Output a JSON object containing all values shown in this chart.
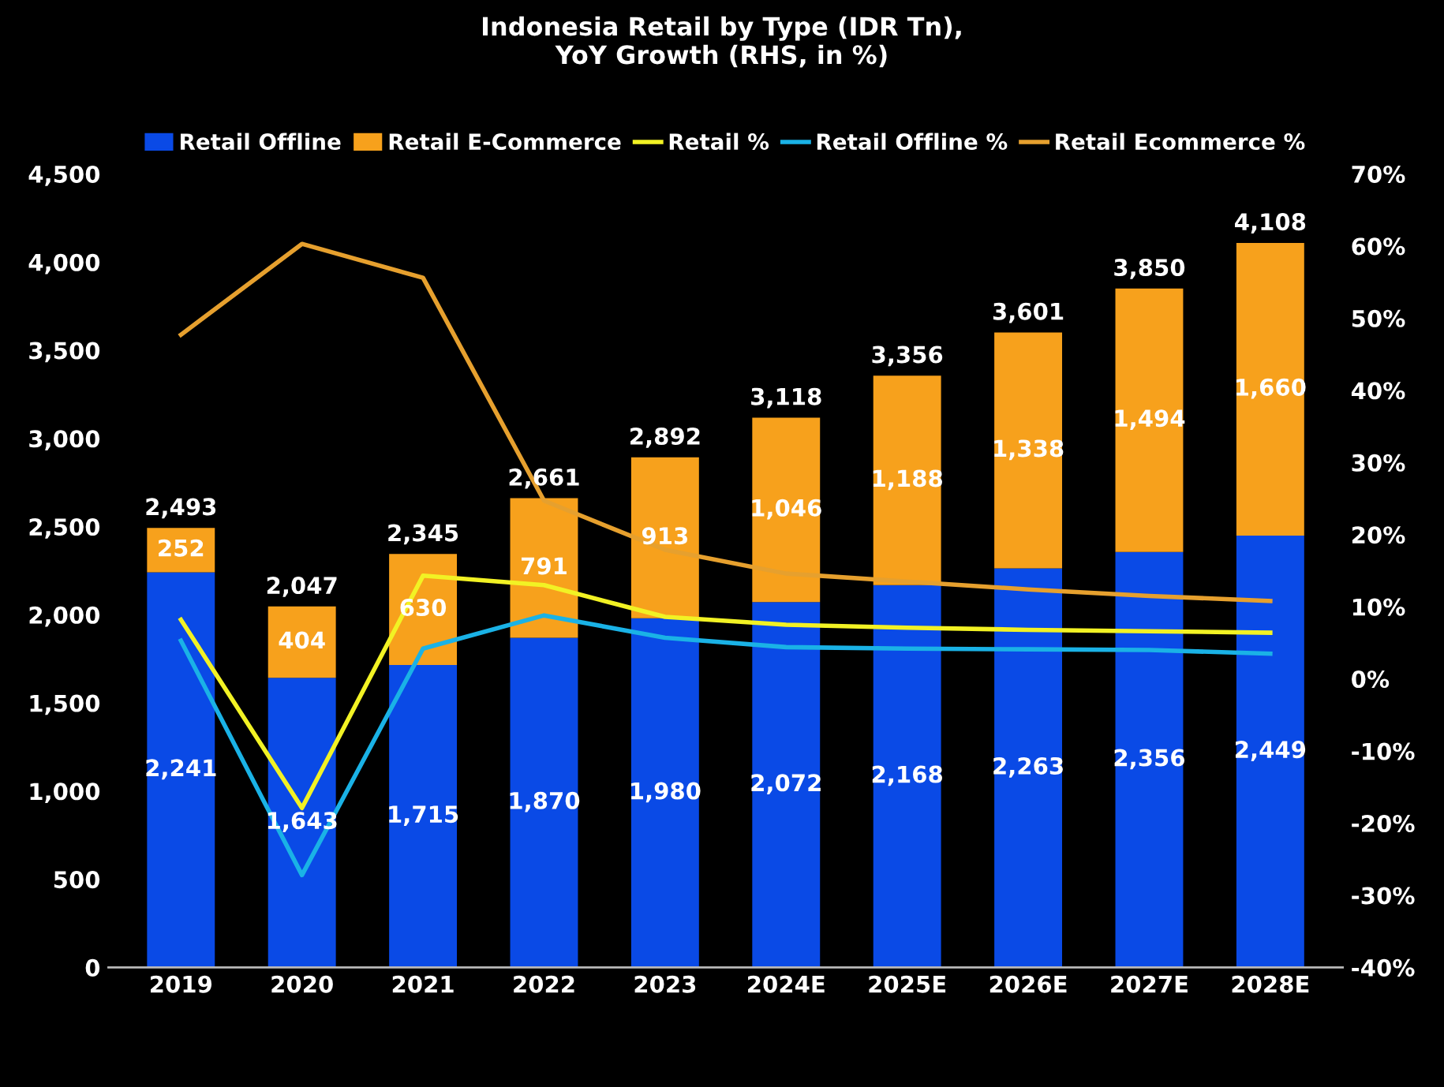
{
  "chart_data": {
    "type": "bar",
    "title": "Indonesia Retail by Type (IDR Tn),\nYoY Growth (RHS, in %)",
    "categories": [
      "2019",
      "2020",
      "2021",
      "2022",
      "2023",
      "2024E",
      "2025E",
      "2026E",
      "2027E",
      "2028E"
    ],
    "stacked": true,
    "totals": [
      "2,493",
      "2,047",
      "2,345",
      "2,661",
      "2,892",
      "3,118",
      "3,356",
      "3,601",
      "3,850",
      "4,108"
    ],
    "series": [
      {
        "name": "Retail Offline",
        "color": "#0a4ae6",
        "values": [
          2241,
          1643,
          1715,
          1870,
          1980,
          2072,
          2168,
          2263,
          2356,
          2449
        ],
        "value_labels": [
          "2,241",
          "1,643",
          "1,715",
          "1,870",
          "1,980",
          "2,072",
          "2,168",
          "2,263",
          "2,356",
          "2,449"
        ]
      },
      {
        "name": "Retail E-Commerce",
        "color": "#f7a11c",
        "values": [
          252,
          404,
          630,
          791,
          913,
          1046,
          1188,
          1338,
          1494,
          1660
        ],
        "value_labels": [
          "252",
          "404",
          "630",
          "791",
          "913",
          "1,046",
          "1,188",
          "1,338",
          "1,494",
          "1,660"
        ]
      },
      {
        "name": "Retail %",
        "type": "line",
        "axis": "y2",
        "color": "#f2f224",
        "values": [
          8.2,
          -17.9,
          14.3,
          13.0,
          8.6,
          7.5,
          7.1,
          6.8,
          6.6,
          6.4
        ]
      },
      {
        "name": "Retail Offline %",
        "type": "line",
        "axis": "y2",
        "color": "#1ab2e6",
        "values": [
          5.3,
          -27.2,
          4.2,
          8.8,
          5.7,
          4.4,
          4.2,
          4.1,
          4.0,
          3.5
        ]
      },
      {
        "name": "Retail Ecommerce %",
        "type": "line",
        "axis": "y2",
        "color": "#e6a02e",
        "values": [
          47.7,
          60.3,
          55.6,
          24.7,
          17.9,
          14.6,
          13.5,
          12.4,
          11.5,
          10.8
        ]
      }
    ],
    "ylim": [
      0,
      4500
    ],
    "yticks": [
      0,
      500,
      {
        "value": 1000,
        "label": "1,000"
      },
      {
        "value": 1500,
        "label": "1,500"
      },
      {
        "value": 2000,
        "label": "2,000"
      },
      {
        "value": 2500,
        "label": "2,500"
      },
      {
        "value": 3000,
        "label": "3,000"
      },
      {
        "value": 3500,
        "label": "3,500"
      },
      {
        "value": 4000,
        "label": "4,000"
      },
      {
        "value": 4500,
        "label": "4,500"
      }
    ],
    "y2lim": [
      -40,
      70
    ],
    "y2ticks": [
      {
        "value": -40,
        "label": "-40%"
      },
      {
        "value": -30,
        "label": "-30%"
      },
      {
        "value": -20,
        "label": "-20%"
      },
      {
        "value": -10,
        "label": "-10%"
      },
      {
        "value": 0,
        "label": "0%"
      },
      {
        "value": 10,
        "label": "10%"
      },
      {
        "value": 20,
        "label": "20%"
      },
      {
        "value": 30,
        "label": "30%"
      },
      {
        "value": 40,
        "label": "40%"
      },
      {
        "value": 50,
        "label": "50%"
      },
      {
        "value": 60,
        "label": "60%"
      },
      {
        "value": 70,
        "label": "70%"
      }
    ],
    "legend": "top",
    "grid": false,
    "marker": "none",
    "line_style": "solid"
  }
}
